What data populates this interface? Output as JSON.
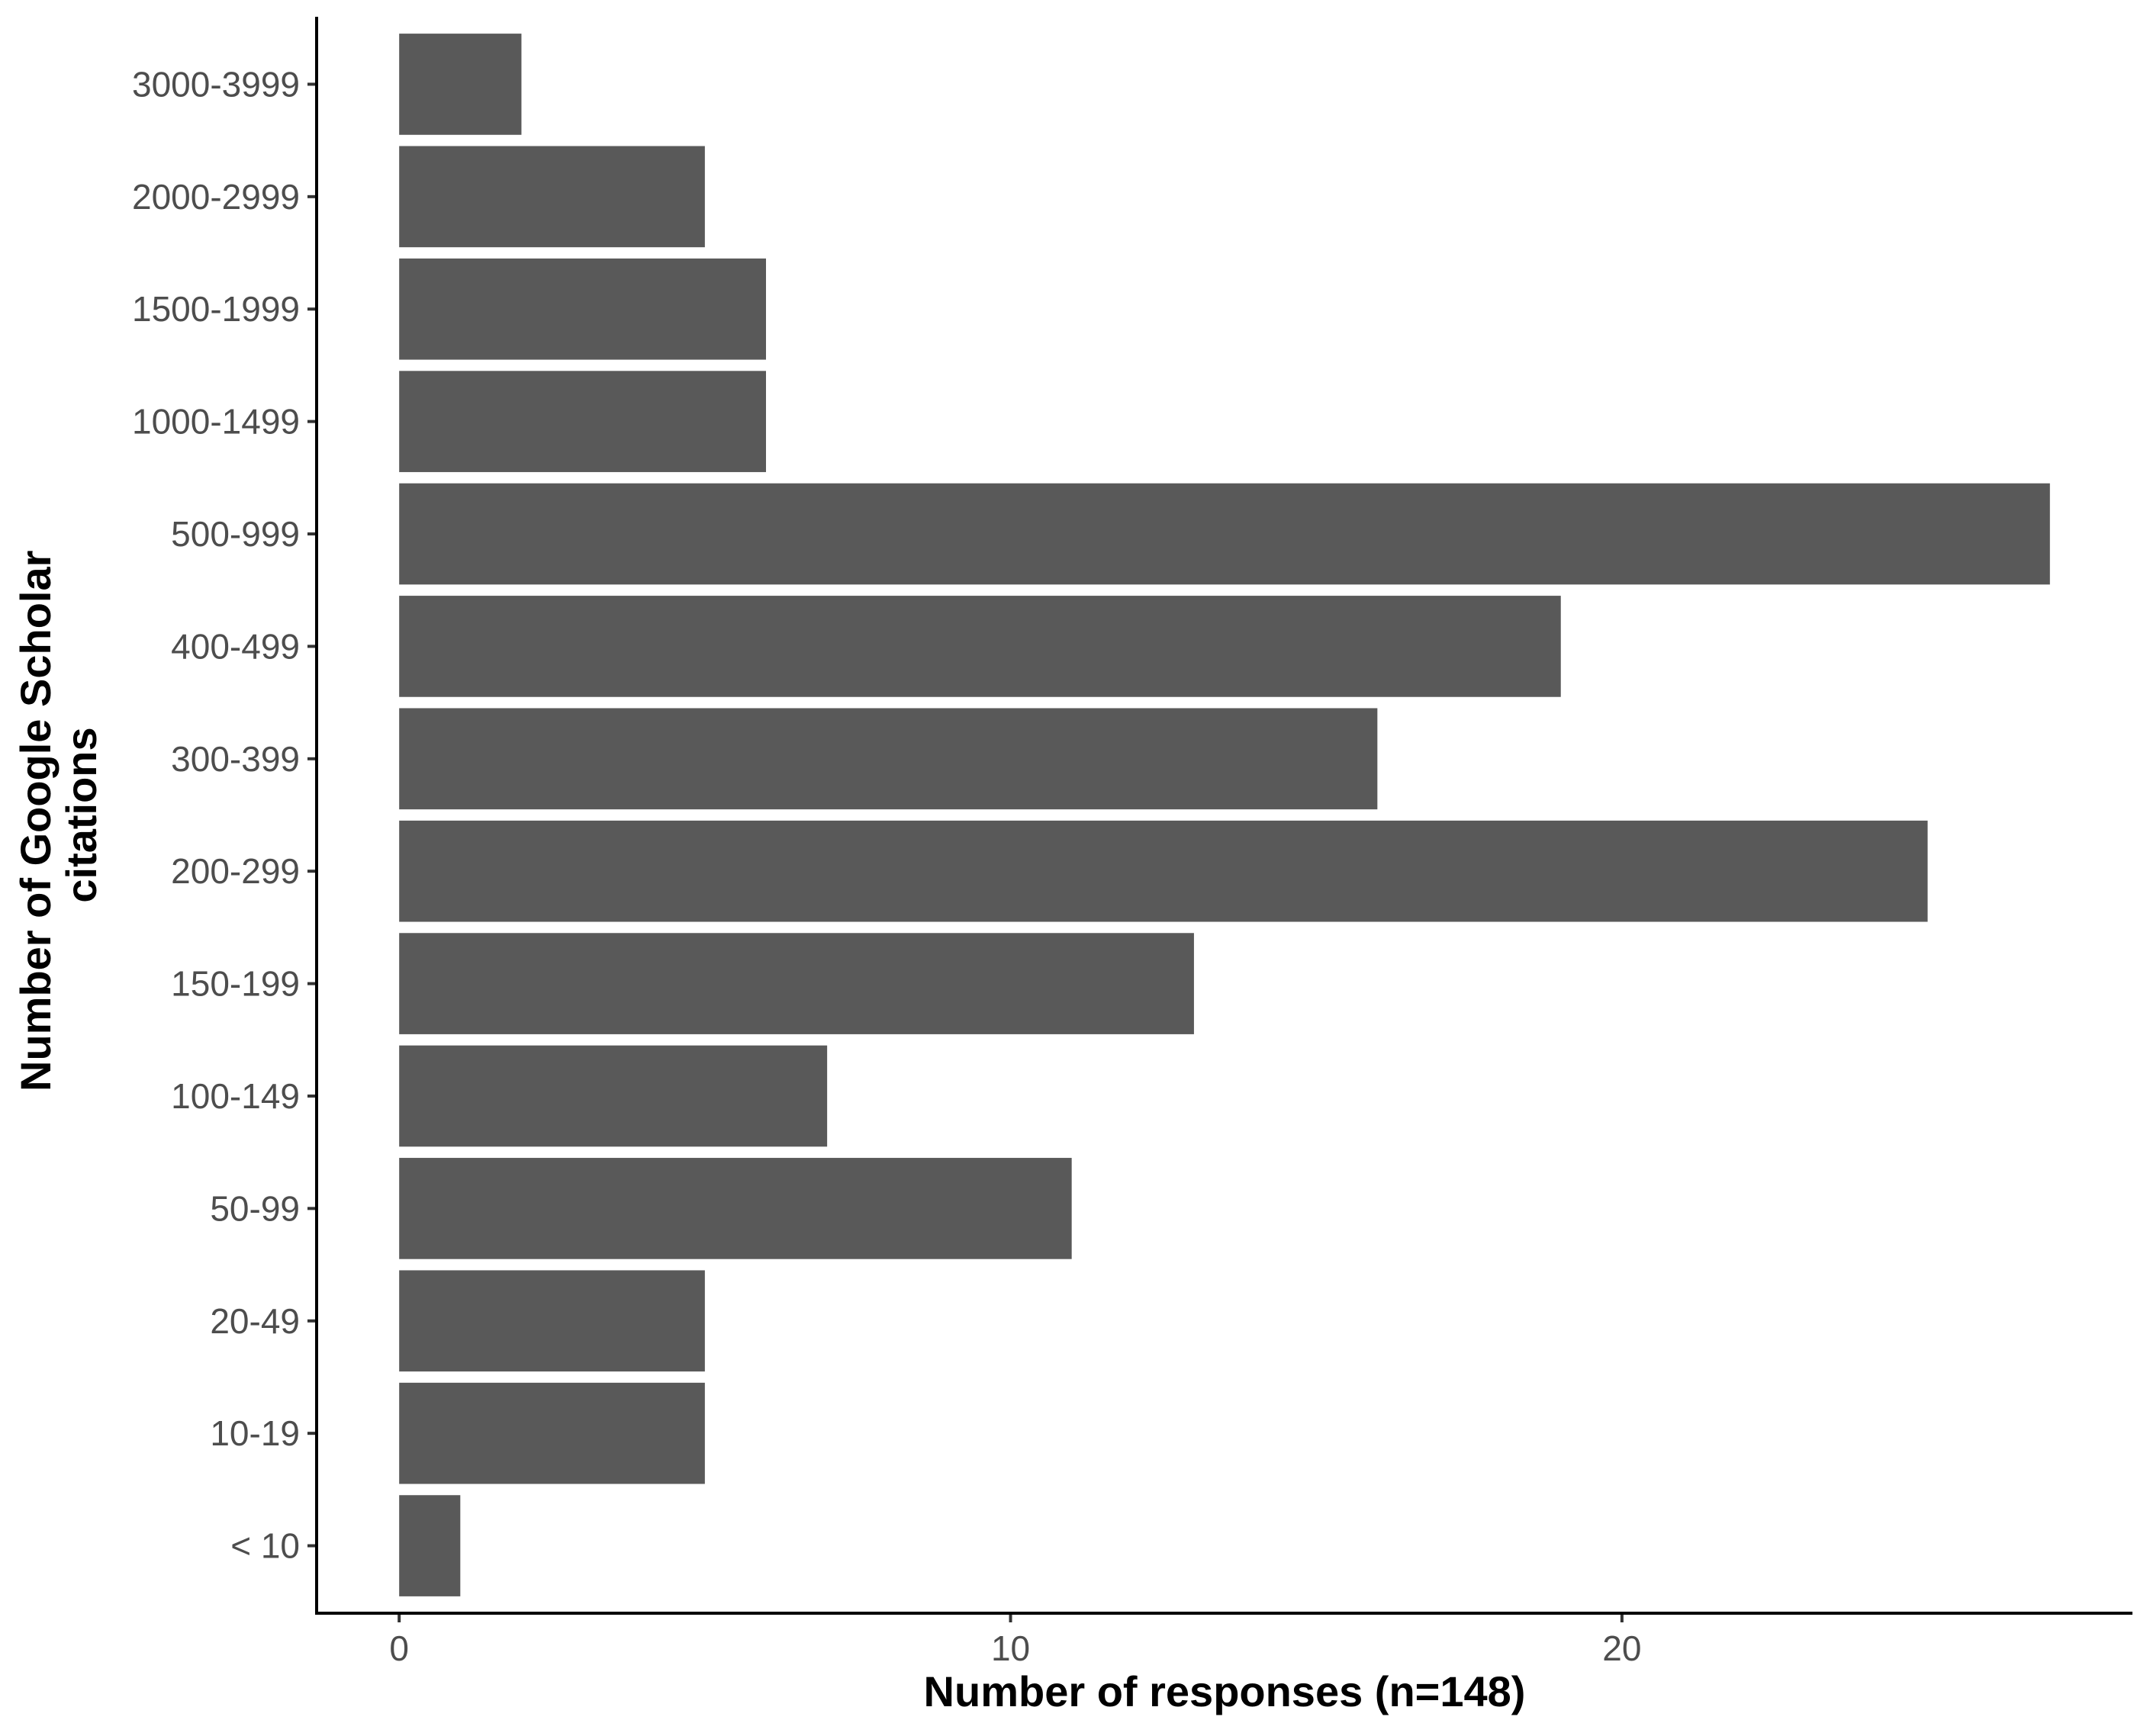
{
  "chart_data": {
    "type": "bar",
    "orientation": "horizontal",
    "categories": [
      "< 10",
      "10-19",
      "20-49",
      "50-99",
      "100-149",
      "150-199",
      "200-299",
      "300-399",
      "400-499",
      "500-999",
      "1000-1499",
      "1500-1999",
      "2000-2999",
      "3000-3999"
    ],
    "values": [
      1,
      5,
      5,
      11,
      7,
      13,
      25,
      16,
      19,
      27,
      6,
      6,
      5,
      2
    ],
    "xlabel": "Number of responses (n=148)",
    "ylabel_lines": [
      "Number of Google Scholar",
      "citations"
    ],
    "x_ticks": [
      0,
      10,
      20
    ],
    "xlim": [
      -1.35,
      28.35
    ],
    "grid": false,
    "legend": "none",
    "bar_color": "#595959"
  }
}
